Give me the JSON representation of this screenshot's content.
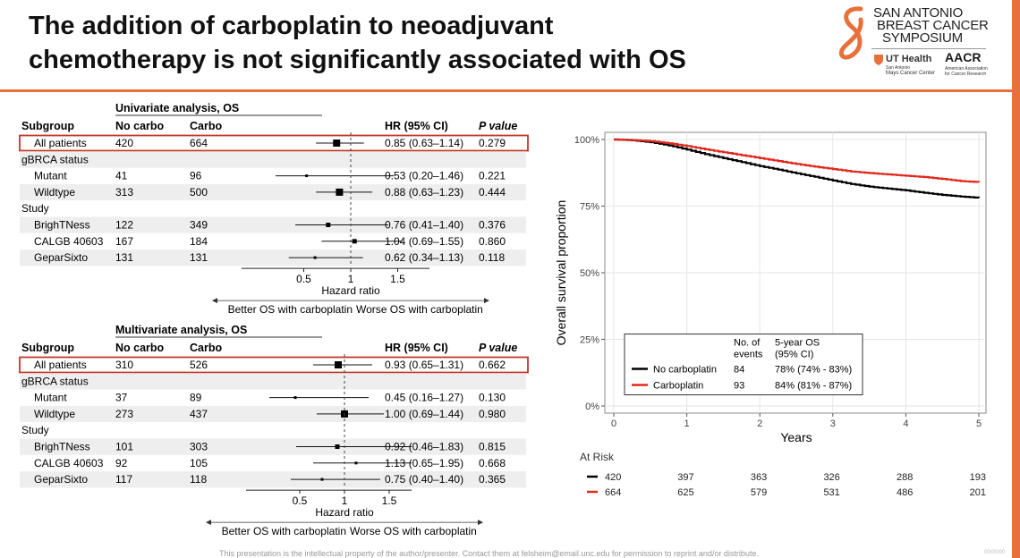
{
  "slide": {
    "title_line1": "The addition of carboplatin to neoadjuvant",
    "title_line2": "chemotherapy is not significantly associated with OS",
    "footer_note": "This presentation is the intellectual property of the author/presenter. Contact them at felsheim@email.unc.edu for permission to reprint and/or distribute.",
    "slide_number": "00/00/00"
  },
  "logo": {
    "line1": "SAN ANTONIO",
    "line2": "BREAST CANCER",
    "line3": "SYMPOSIUM",
    "ut_health": "UT Health",
    "ut_sub1": "San Antonio",
    "ut_sub2": "Mays Cancer Center",
    "aacr": "AACR",
    "aacr_sub1": "American Association",
    "aacr_sub2": "for Cancer Research"
  },
  "colors": {
    "accent": "#e8703a",
    "highlight_box": "#c0392b",
    "km_carbo": "#e0281e",
    "km_nocarbo": "#000000"
  },
  "chart_data": [
    {
      "type": "forest",
      "title": "Univariate analysis, OS",
      "columns": [
        "Subgroup",
        "No carbo",
        "Carbo",
        "HR (95% CI)",
        "P value"
      ],
      "rows": [
        {
          "label": "All patients",
          "header": false,
          "highlight": true,
          "indent": true,
          "no_carbo": "420",
          "carbo": "664",
          "hr": 0.85,
          "lo": 0.63,
          "hi": 1.14,
          "hr_text": "0.85 (0.63–1.14)",
          "p": "0.279",
          "weight": "large"
        },
        {
          "label": "gBRCA status",
          "header": true
        },
        {
          "label": "Mutant",
          "header": false,
          "indent": true,
          "no_carbo": "41",
          "carbo": "96",
          "hr": 0.53,
          "lo": 0.2,
          "hi": 1.46,
          "hr_text": "0.53 (0.20–1.46)",
          "p": "0.221",
          "weight": "tiny"
        },
        {
          "label": "Wildtype",
          "header": false,
          "indent": true,
          "no_carbo": "313",
          "carbo": "500",
          "hr": 0.88,
          "lo": 0.63,
          "hi": 1.23,
          "hr_text": "0.88 (0.63–1.23)",
          "p": "0.444",
          "weight": "large"
        },
        {
          "label": "Study",
          "header": true
        },
        {
          "label": "BrighTNess",
          "header": false,
          "indent": true,
          "no_carbo": "122",
          "carbo": "349",
          "hr": 0.76,
          "lo": 0.41,
          "hi": 1.4,
          "hr_text": "0.76 (0.41–1.40)",
          "p": "0.376",
          "weight": "small"
        },
        {
          "label": "CALGB 40603",
          "header": false,
          "indent": true,
          "no_carbo": "167",
          "carbo": "184",
          "hr": 1.04,
          "lo": 0.69,
          "hi": 1.55,
          "hr_text": "1.04 (0.69–1.55)",
          "p": "0.860",
          "weight": "small"
        },
        {
          "label": "GeparSixto",
          "header": false,
          "indent": true,
          "no_carbo": "131",
          "carbo": "131",
          "hr": 0.62,
          "lo": 0.34,
          "hi": 1.13,
          "hr_text": "0.62 (0.34–1.13)",
          "p": "0.118",
          "weight": "tiny"
        }
      ],
      "x_ticks": [
        "0.5",
        "1",
        "1.5"
      ],
      "xlabel": "Hazard ratio",
      "favor_left": "Better OS with carboplatin",
      "favor_right": "Worse OS with carboplatin",
      "reference_line": 1
    },
    {
      "type": "forest",
      "title": "Multivariate analysis, OS",
      "columns": [
        "Subgroup",
        "No carbo",
        "Carbo",
        "HR (95% CI)",
        "P value"
      ],
      "rows": [
        {
          "label": "All patients",
          "header": false,
          "highlight": true,
          "indent": true,
          "no_carbo": "310",
          "carbo": "526",
          "hr": 0.93,
          "lo": 0.65,
          "hi": 1.31,
          "hr_text": "0.93 (0.65–1.31)",
          "p": "0.662",
          "weight": "large"
        },
        {
          "label": "gBRCA status",
          "header": true
        },
        {
          "label": "Mutant",
          "header": false,
          "indent": true,
          "no_carbo": "37",
          "carbo": "89",
          "hr": 0.45,
          "lo": 0.16,
          "hi": 1.27,
          "hr_text": "0.45 (0.16–1.27)",
          "p": "0.130",
          "weight": "tiny"
        },
        {
          "label": "Wildtype",
          "header": false,
          "indent": true,
          "no_carbo": "273",
          "carbo": "437",
          "hr": 1.0,
          "lo": 0.69,
          "hi": 1.44,
          "hr_text": "1.00 (0.69–1.44)",
          "p": "0.980",
          "weight": "large"
        },
        {
          "label": "Study",
          "header": true
        },
        {
          "label": "BrighTNess",
          "header": false,
          "indent": true,
          "no_carbo": "101",
          "carbo": "303",
          "hr": 0.92,
          "lo": 0.46,
          "hi": 1.83,
          "hr_text": "0.92 (0.46–1.83)",
          "p": "0.815",
          "weight": "small"
        },
        {
          "label": "CALGB 40603",
          "header": false,
          "indent": true,
          "no_carbo": "92",
          "carbo": "105",
          "hr": 1.13,
          "lo": 0.65,
          "hi": 1.95,
          "hr_text": "1.13 (0.65–1.95)",
          "p": "0.668",
          "weight": "tiny"
        },
        {
          "label": "GeparSixto",
          "header": false,
          "indent": true,
          "no_carbo": "117",
          "carbo": "118",
          "hr": 0.75,
          "lo": 0.4,
          "hi": 1.4,
          "hr_text": "0.75 (0.40–1.40)",
          "p": "0.365",
          "weight": "tiny"
        }
      ],
      "x_ticks": [
        "0.5",
        "1",
        "1.5"
      ],
      "xlabel": "Hazard ratio",
      "favor_left": "Better OS with carboplatin",
      "favor_right": "Worse OS with carboplatin",
      "reference_line": 1
    },
    {
      "type": "line",
      "subtype": "kaplan-meier",
      "xlabel": "Years",
      "ylabel": "Overall survival proportion",
      "x_ticks": [
        0,
        1,
        2,
        3,
        4,
        5
      ],
      "y_ticks": [
        0,
        25,
        50,
        75,
        100
      ],
      "y_tick_labels": [
        "0%",
        "25%",
        "50%",
        "75%",
        "100%"
      ],
      "xlim": [
        0,
        5
      ],
      "ylim": [
        0,
        100
      ],
      "grid": true,
      "series": [
        {
          "name": "No carboplatin",
          "color": "#000000",
          "x": [
            0,
            0.25,
            0.5,
            0.75,
            1.0,
            1.25,
            1.5,
            1.75,
            2.0,
            2.25,
            2.5,
            2.75,
            3.0,
            3.25,
            3.5,
            3.75,
            4.0,
            4.25,
            4.5,
            4.75,
            5.0
          ],
          "y": [
            100,
            99.7,
            99,
            97.8,
            96.2,
            94.5,
            93,
            91.5,
            90,
            88.7,
            87.3,
            86,
            84.6,
            83.3,
            82.3,
            81.6,
            80.9,
            80,
            79.2,
            78.6,
            78.1
          ]
        },
        {
          "name": "Carboplatin",
          "color": "#e0281e",
          "x": [
            0,
            0.25,
            0.5,
            0.75,
            1.0,
            1.25,
            1.5,
            1.75,
            2.0,
            2.25,
            2.5,
            2.75,
            3.0,
            3.25,
            3.5,
            3.75,
            4.0,
            4.25,
            4.5,
            4.75,
            5.0
          ],
          "y": [
            100,
            99.8,
            99.4,
            98.6,
            97.5,
            96.3,
            95.2,
            94.1,
            93,
            91.9,
            90.8,
            89.8,
            88.9,
            88,
            87.4,
            86.9,
            86.4,
            85.9,
            85.2,
            84.4,
            84
          ]
        }
      ],
      "legend": {
        "position": "bottom-right",
        "col_events_line1": "No. of",
        "col_events_line2": "events",
        "col_os_line1": "5-year OS",
        "col_os_line2": "(95% CI)",
        "entries": [
          {
            "name": "No carboplatin",
            "events": "84",
            "os": "78% (74% - 83%)"
          },
          {
            "name": "Carboplatin",
            "events": "93",
            "os": "84% (81% - 87%)"
          }
        ]
      },
      "at_risk": {
        "label": "At Risk",
        "rows": [
          {
            "name": "No carboplatin",
            "values": [
              "420",
              "397",
              "363",
              "326",
              "288",
              "193"
            ]
          },
          {
            "name": "Carboplatin",
            "values": [
              "664",
              "625",
              "579",
              "531",
              "486",
              "201"
            ]
          }
        ]
      }
    }
  ]
}
